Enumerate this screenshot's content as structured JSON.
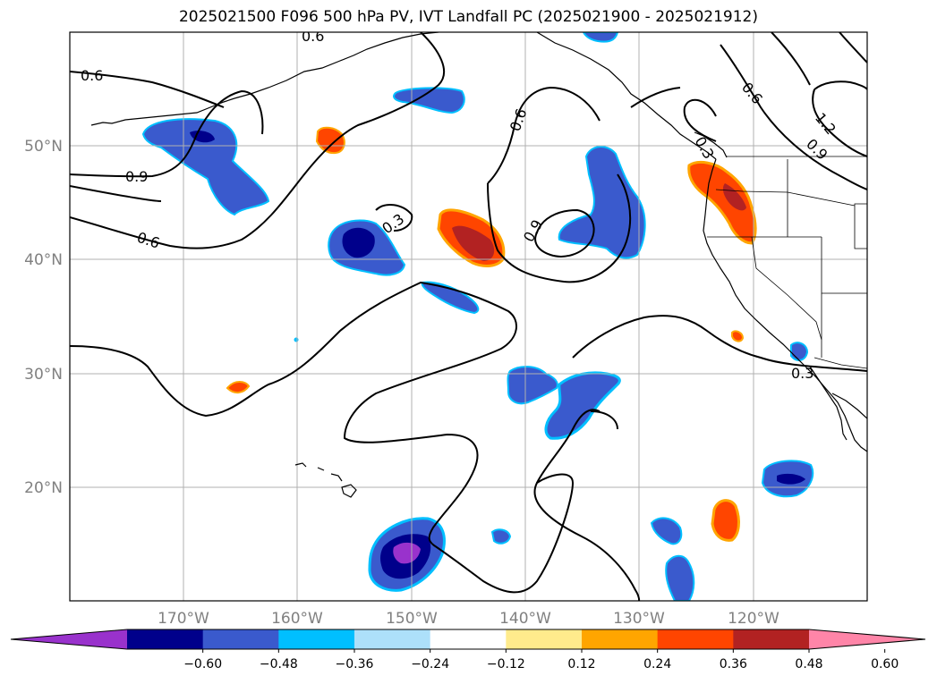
{
  "title": "2025021500 F096 500 hPa PV, IVT Landfall PC (2025021900 - 2025021912)",
  "map": {
    "lon_range": [
      -180,
      -110
    ],
    "lat_range": [
      10,
      60
    ],
    "lon_ticks": [
      {
        "lon": -170,
        "label": "170°W"
      },
      {
        "lon": -160,
        "label": "160°W"
      },
      {
        "lon": -150,
        "label": "150°W"
      },
      {
        "lon": -140,
        "label": "140°W"
      },
      {
        "lon": -130,
        "label": "130°W"
      },
      {
        "lon": -120,
        "label": "120°W"
      }
    ],
    "lat_ticks": [
      {
        "lat": 20,
        "label": "20°N"
      },
      {
        "lat": 30,
        "label": "30°N"
      },
      {
        "lat": 40,
        "label": "40°N"
      },
      {
        "lat": 50,
        "label": "50°N"
      }
    ],
    "gridlines": true,
    "contour_labels": [
      "0.6",
      "0.9",
      "0.6",
      "0.3",
      "0.6",
      "0.9",
      "0.6",
      "1.2",
      "0.9",
      "0.3",
      "0.6",
      "0.3"
    ]
  },
  "colorbar": {
    "ticks": [
      "−0.60",
      "−0.48",
      "−0.36",
      "−0.24",
      "−0.12",
      "0.12",
      "0.24",
      "0.36",
      "0.48",
      "0.60"
    ],
    "colors": [
      "#9932CC",
      "#00008B",
      "#3A5ACD",
      "#00BFFF",
      "#ADE0FA",
      "#FFFFFF",
      "#FFEB8C",
      "#FFA500",
      "#FF4500",
      "#B22222",
      "#FF85A8"
    ]
  }
}
